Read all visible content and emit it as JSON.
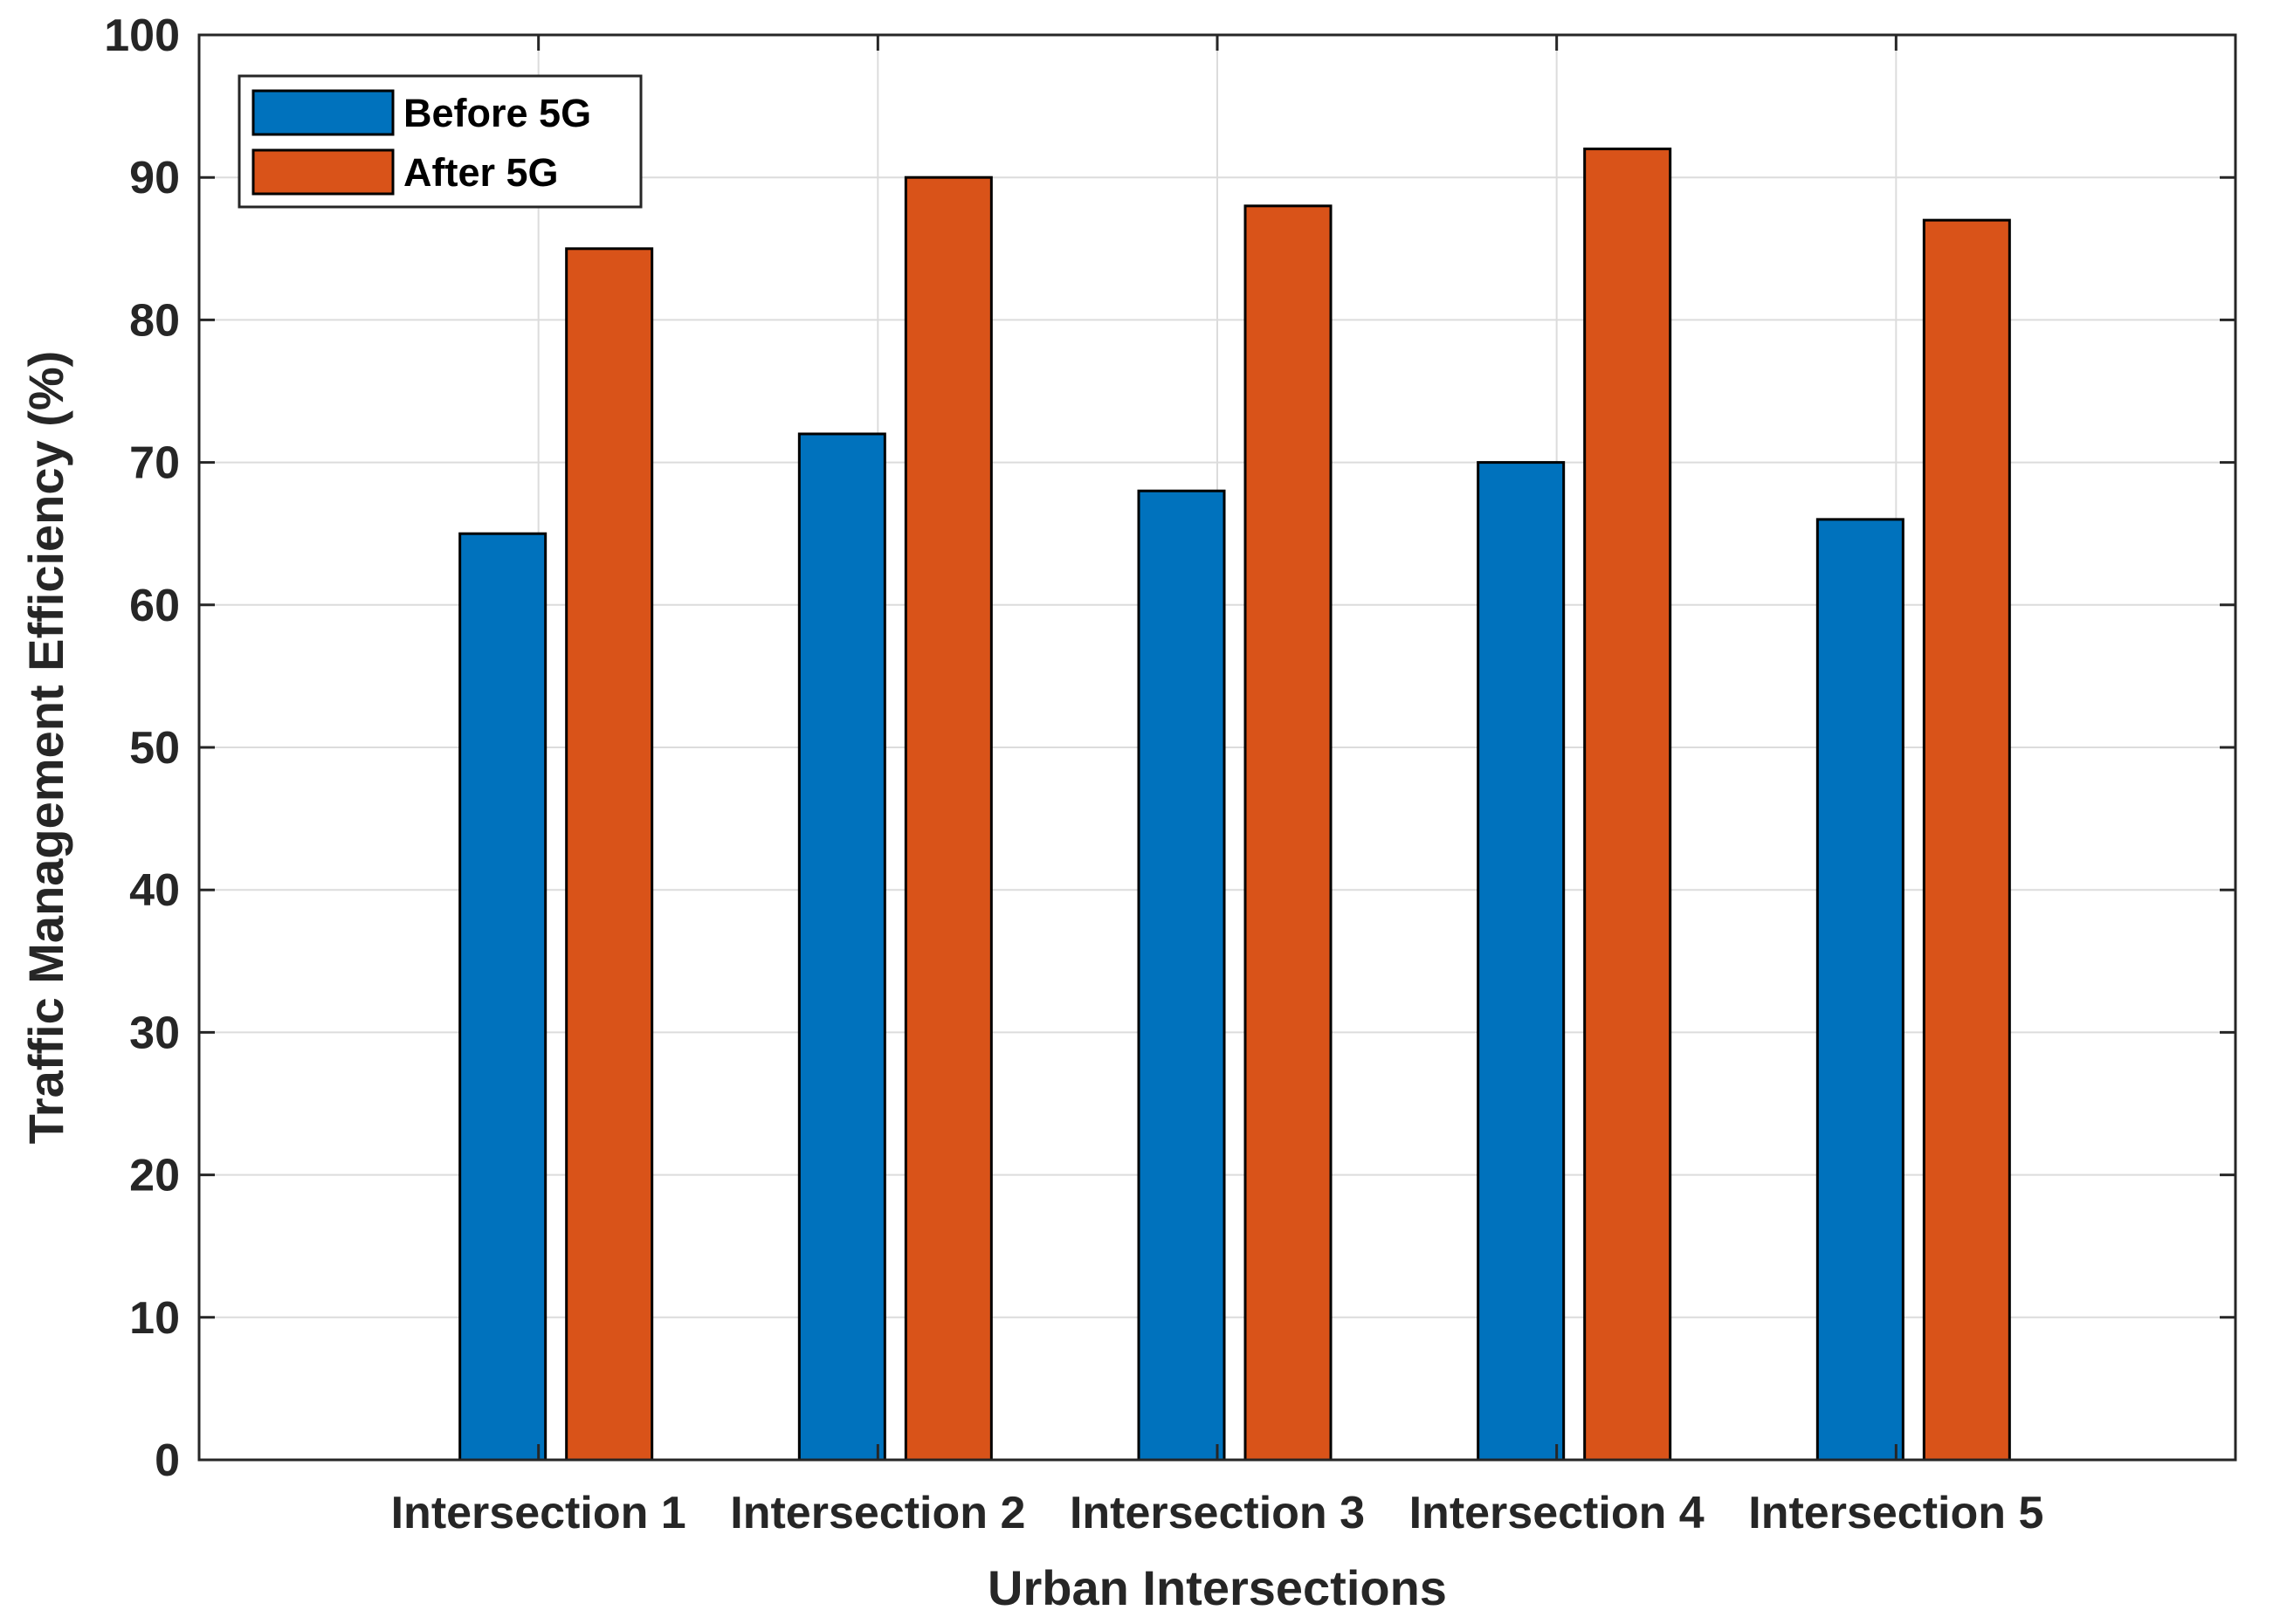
{
  "chart_data": {
    "type": "bar",
    "title": "",
    "xlabel": "Urban Intersections",
    "ylabel": "Traffic Management Efficiency (%)",
    "categories": [
      "Intersection 1",
      "Intersection 2",
      "Intersection 3",
      "Intersection 4",
      "Intersection 5"
    ],
    "series": [
      {
        "name": "Before 5G",
        "color": "#0072BD",
        "values": [
          65,
          72,
          68,
          70,
          66
        ]
      },
      {
        "name": "After 5G",
        "color": "#D95319",
        "values": [
          85,
          90,
          88,
          92,
          87
        ]
      }
    ],
    "ylim": [
      0,
      100
    ],
    "yticks": [
      0,
      10,
      20,
      30,
      40,
      50,
      60,
      70,
      80,
      90,
      100
    ],
    "grid": true,
    "legend_position": "top-left"
  }
}
